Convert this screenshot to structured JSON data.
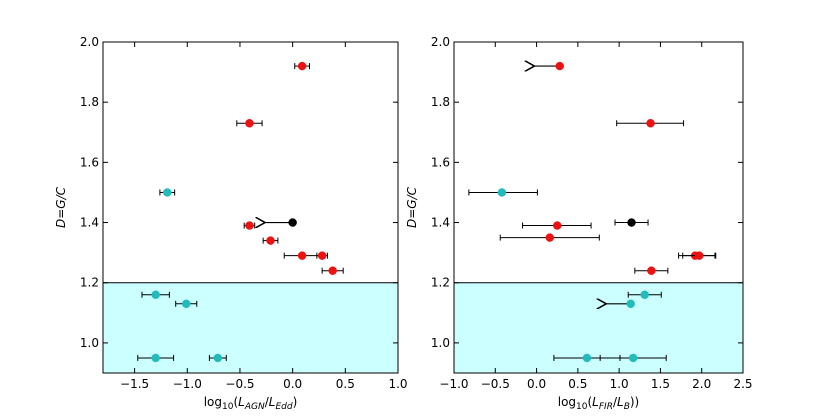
{
  "colors": {
    "red": "#ee1111",
    "cyan": "#22bbbb",
    "black": "#000000",
    "band": "#ccffff",
    "errorbar": "#000000"
  },
  "chart_data": [
    {
      "type": "scatter",
      "name": "left-panel",
      "xlabel": "log10(L_AGN/L_Edd)",
      "xlabel_parts": {
        "func": "log",
        "sub": "10",
        "a": "L",
        "a_sub": "AGN",
        "b": "L",
        "b_sub": "Edd"
      },
      "ylabel": "D=G/C",
      "xlim": [
        -1.8,
        1.0
      ],
      "ylim": [
        0.9,
        2.0
      ],
      "xticks": [
        -1.5,
        -1.0,
        -0.5,
        0.0,
        0.5,
        1.0
      ],
      "xtick_labels": [
        "−1.5",
        "−1.0",
        "−0.5",
        "0.0",
        "0.5",
        "1.0"
      ],
      "yticks": [
        1.0,
        1.2,
        1.4,
        1.6,
        1.8,
        2.0
      ],
      "ytick_labels": [
        "1.0",
        "1.2",
        "1.4",
        "1.6",
        "1.8",
        "2.0"
      ],
      "threshold": 1.2,
      "shaded_below_threshold": true,
      "points": [
        {
          "x": 0.09,
          "y": 1.92,
          "xerr": [
            0.07,
            0.07
          ],
          "color": "red"
        },
        {
          "x": -0.41,
          "y": 1.73,
          "xerr": [
            0.12,
            0.12
          ],
          "color": "red"
        },
        {
          "x": -1.19,
          "y": 1.5,
          "xerr": [
            0.07,
            0.07
          ],
          "color": "cyan"
        },
        {
          "x": -0.41,
          "y": 1.39,
          "xerr": [
            0.05,
            0.05
          ],
          "color": "red"
        },
        {
          "x": 0.0,
          "y": 1.4,
          "xerr": [
            0.0,
            0.0
          ],
          "color": "black",
          "upper_limit": true,
          "arrow_to": -0.28
        },
        {
          "x": -0.21,
          "y": 1.34,
          "xerr": [
            0.07,
            0.07
          ],
          "color": "red"
        },
        {
          "x": 0.09,
          "y": 1.29,
          "xerr": [
            0.17,
            0.2
          ],
          "color": "red"
        },
        {
          "x": 0.28,
          "y": 1.29,
          "xerr": [
            0.05,
            0.05
          ],
          "color": "red"
        },
        {
          "x": 0.38,
          "y": 1.24,
          "xerr": [
            0.1,
            0.1
          ],
          "color": "red"
        },
        {
          "x": -1.3,
          "y": 1.16,
          "xerr": [
            0.13,
            0.13
          ],
          "color": "cyan"
        },
        {
          "x": -1.01,
          "y": 1.13,
          "xerr": [
            0.1,
            0.1
          ],
          "color": "cyan"
        },
        {
          "x": -1.3,
          "y": 0.95,
          "xerr": [
            0.17,
            0.17
          ],
          "color": "cyan"
        },
        {
          "x": -0.71,
          "y": 0.95,
          "xerr": [
            0.08,
            0.08
          ],
          "color": "cyan"
        }
      ]
    },
    {
      "type": "scatter",
      "name": "right-panel",
      "xlabel": "log10(L_FIR/L_B))",
      "xlabel_parts": {
        "func": "log",
        "sub": "10",
        "a": "L",
        "a_sub": "FIR",
        "b": "L",
        "b_sub": "B",
        "tail": "))"
      },
      "ylabel": "D=G/C",
      "xlim": [
        -1.0,
        2.5
      ],
      "ylim": [
        0.9,
        2.0
      ],
      "xticks": [
        -1.0,
        -0.5,
        0.0,
        0.5,
        1.0,
        1.5,
        2.0,
        2.5
      ],
      "xtick_labels": [
        "−1.0",
        "−0.5",
        "0.0",
        "0.5",
        "1.0",
        "1.5",
        "2.0",
        "2.5"
      ],
      "yticks": [
        1.0,
        1.2,
        1.4,
        1.6,
        1.8,
        2.0
      ],
      "ytick_labels": [
        "1.0",
        "1.2",
        "1.4",
        "1.6",
        "1.8",
        "2.0"
      ],
      "threshold": 1.2,
      "shaded_below_threshold": true,
      "points": [
        {
          "x": 0.28,
          "y": 1.92,
          "xerr": [
            0.0,
            0.0
          ],
          "color": "red",
          "upper_limit": true,
          "arrow_to": -0.05
        },
        {
          "x": 1.38,
          "y": 1.73,
          "xerr": [
            0.41,
            0.4
          ],
          "color": "red"
        },
        {
          "x": -0.42,
          "y": 1.5,
          "xerr": [
            0.4,
            0.43
          ],
          "color": "cyan"
        },
        {
          "x": 0.25,
          "y": 1.39,
          "xerr": [
            0.42,
            0.41
          ],
          "color": "red"
        },
        {
          "x": 1.15,
          "y": 1.4,
          "xerr": [
            0.2,
            0.2
          ],
          "color": "black"
        },
        {
          "x": 0.16,
          "y": 1.35,
          "xerr": [
            0.6,
            0.6
          ],
          "color": "red"
        },
        {
          "x": 1.92,
          "y": 1.29,
          "xerr": [
            0.2,
            0.24
          ],
          "color": "red"
        },
        {
          "x": 1.97,
          "y": 1.29,
          "xerr": [
            0.2,
            0.2
          ],
          "color": "red"
        },
        {
          "x": 1.39,
          "y": 1.24,
          "xerr": [
            0.2,
            0.2
          ],
          "color": "red"
        },
        {
          "x": 1.31,
          "y": 1.16,
          "xerr": [
            0.2,
            0.2
          ],
          "color": "cyan"
        },
        {
          "x": 1.14,
          "y": 1.13,
          "xerr": [
            0.0,
            0.0
          ],
          "color": "cyan",
          "upper_limit": true,
          "arrow_to": 0.82
        },
        {
          "x": 0.61,
          "y": 0.95,
          "xerr": [
            0.4,
            0.4
          ],
          "color": "cyan"
        },
        {
          "x": 1.17,
          "y": 0.95,
          "xerr": [
            0.4,
            0.4
          ],
          "color": "cyan"
        }
      ]
    }
  ]
}
